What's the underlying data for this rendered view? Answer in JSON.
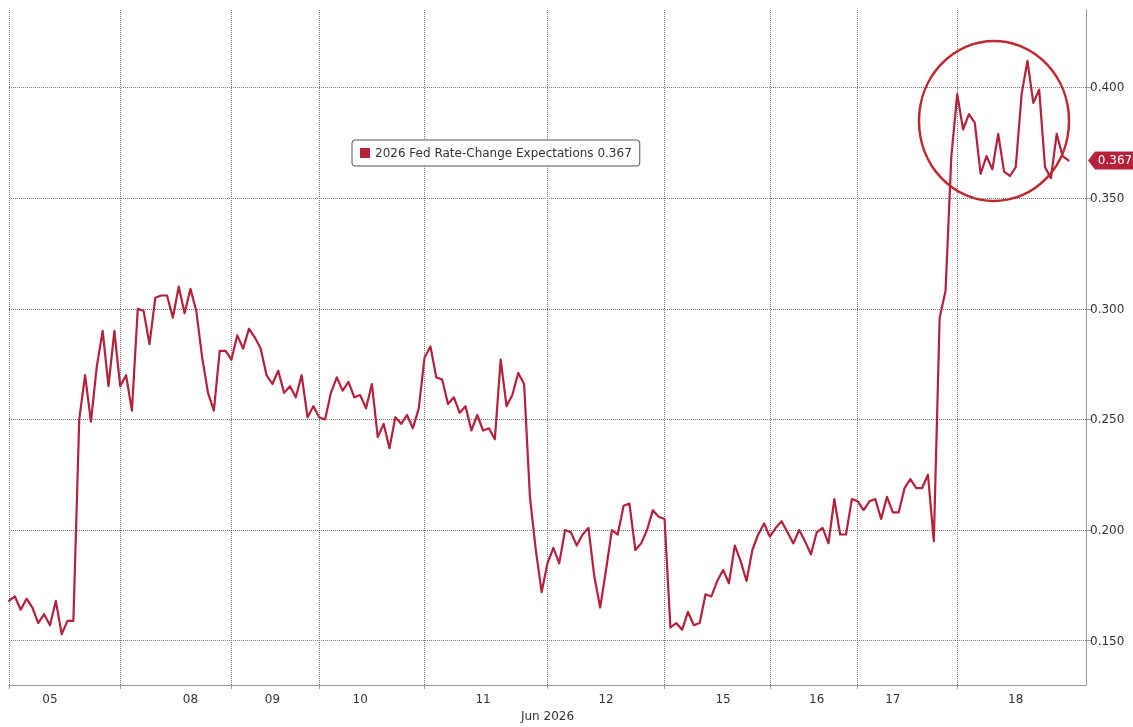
{
  "chart_data": {
    "type": "line",
    "xlabel": "Jun 2026",
    "categories": [
      null,
      null,
      null,
      null,
      null,
      null,
      null,
      "05",
      null,
      null,
      null,
      null,
      null,
      null,
      null,
      null,
      null,
      null,
      null,
      null,
      null,
      null,
      null,
      null,
      null,
      null,
      null,
      null,
      null,
      null,
      null,
      "08",
      null,
      null,
      null,
      null,
      null,
      null,
      null,
      null,
      null,
      null,
      null,
      null,
      null,
      "09",
      null,
      null,
      null,
      null,
      null,
      null,
      null,
      null,
      null,
      null,
      null,
      null,
      null,
      null,
      "10",
      null,
      null,
      null,
      null,
      null,
      null,
      null,
      null,
      null,
      null,
      null,
      null,
      null,
      null,
      null,
      null,
      null,
      null,
      null,
      null,
      "11",
      null,
      null,
      null,
      null,
      null,
      null,
      null,
      null,
      null,
      null,
      null,
      null,
      null,
      null,
      null,
      null,
      null,
      null,
      null,
      null,
      "12",
      null,
      null,
      null,
      null,
      null,
      null,
      null,
      null,
      null,
      null,
      null,
      null,
      null,
      null,
      null,
      null,
      null,
      null,
      null,
      "15",
      null,
      null,
      null,
      null,
      null,
      null,
      null,
      null,
      null,
      null,
      null,
      null,
      null,
      null,
      null,
      "16",
      null,
      null,
      null,
      null,
      null,
      null,
      null,
      null,
      null,
      null,
      null,
      null,
      "17",
      null,
      null,
      null,
      null,
      null,
      null,
      null,
      null,
      null,
      null,
      null,
      null,
      null,
      null,
      null,
      null,
      null,
      null,
      null,
      null,
      "18",
      null,
      null,
      null,
      null,
      null,
      null,
      null,
      null,
      null,
      null,
      null,
      null
    ],
    "series": [
      {
        "name": "2026 Fed Rate-Change Expectations 0.367",
        "color": "#b5203a",
        "values": [
          0.168,
          0.17,
          0.164,
          0.169,
          0.165,
          0.158,
          0.162,
          0.157,
          0.168,
          0.153,
          0.159,
          0.159,
          0.25,
          0.27,
          0.249,
          0.274,
          0.29,
          0.265,
          0.29,
          0.265,
          0.27,
          0.254,
          0.3,
          0.299,
          0.284,
          0.305,
          0.306,
          0.306,
          0.296,
          0.31,
          0.298,
          0.309,
          0.299,
          0.278,
          0.262,
          0.254,
          0.281,
          0.281,
          0.277,
          0.288,
          0.282,
          0.291,
          0.287,
          0.282,
          0.27,
          0.266,
          0.272,
          0.262,
          0.265,
          0.26,
          0.27,
          0.251,
          0.256,
          0.251,
          0.25,
          0.262,
          0.269,
          0.263,
          0.267,
          0.26,
          0.261,
          0.255,
          0.266,
          0.242,
          0.248,
          0.237,
          0.251,
          0.248,
          0.252,
          0.246,
          0.255,
          0.278,
          0.283,
          0.269,
          0.268,
          0.257,
          0.26,
          0.253,
          0.256,
          0.245,
          0.252,
          0.245,
          0.246,
          0.241,
          0.277,
          0.256,
          0.261,
          0.271,
          0.266,
          0.215,
          0.191,
          0.172,
          0.185,
          0.192,
          0.185,
          0.2,
          0.199,
          0.193,
          0.198,
          0.201,
          0.179,
          0.165,
          0.182,
          0.2,
          0.198,
          0.211,
          0.212,
          0.191,
          0.194,
          0.2,
          0.209,
          0.206,
          0.205,
          0.156,
          0.158,
          0.155,
          0.163,
          0.157,
          0.158,
          0.171,
          0.17,
          0.177,
          0.182,
          0.176,
          0.193,
          0.186,
          0.177,
          0.191,
          0.198,
          0.203,
          0.197,
          0.201,
          0.204,
          0.199,
          0.194,
          0.2,
          0.195,
          0.189,
          0.199,
          0.201,
          0.194,
          0.214,
          0.198,
          0.198,
          0.214,
          0.213,
          0.209,
          0.213,
          0.214,
          0.205,
          0.215,
          0.208,
          0.208,
          0.219,
          0.223,
          0.219,
          0.219,
          0.225,
          0.195,
          0.296,
          0.308,
          0.369,
          0.397,
          0.381,
          0.388,
          0.384,
          0.361,
          0.369,
          0.363,
          0.379,
          0.362,
          0.36,
          0.364,
          0.397,
          0.412,
          0.393,
          0.399,
          0.364,
          0.359,
          0.379,
          0.369,
          0.367,
          null,
          null,
          null
        ]
      }
    ],
    "annotations": [
      "0.367"
    ],
    "ylim": [
      0.13,
      0.435
    ],
    "yticks": [
      {
        "value": 0.15,
        "label": "0.150"
      },
      {
        "value": 0.2,
        "label": "0.200"
      },
      {
        "value": 0.25,
        "label": "0.250"
      },
      {
        "value": 0.3,
        "label": "0.300"
      },
      {
        "value": 0.35,
        "label": "0.350"
      },
      {
        "value": 0.4,
        "label": "0.400"
      }
    ],
    "grid": true,
    "legend": "top",
    "marker": "none",
    "line_style": "solid"
  }
}
